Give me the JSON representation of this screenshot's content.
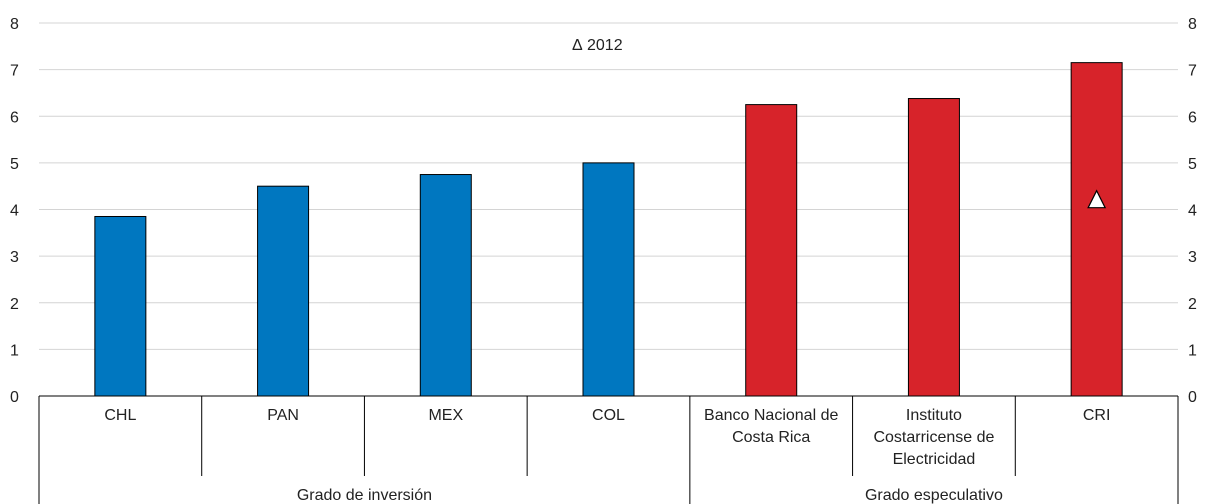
{
  "chart_data": {
    "type": "bar",
    "categories": [
      "CHL",
      "PAN",
      "MEX",
      "COL",
      "Banco Nacional de Costa Rica",
      "Instituto Costarricense de Electricidad",
      "CRI"
    ],
    "category_lines": [
      [
        "CHL"
      ],
      [
        "PAN"
      ],
      [
        "MEX"
      ],
      [
        "COL"
      ],
      [
        "Banco Nacional de",
        "Costa Rica"
      ],
      [
        "Instituto",
        "Costarricense de",
        "Electricidad"
      ],
      [
        "CRI"
      ]
    ],
    "values": [
      3.85,
      4.5,
      4.75,
      5.0,
      6.25,
      6.38,
      7.15
    ],
    "groups": [
      {
        "label": "Grado de inversión",
        "start": 0,
        "end": 3,
        "color": "#0077c0"
      },
      {
        "label": "Grado especulativo",
        "start": 4,
        "end": 6,
        "color": "#d7232a"
      }
    ],
    "markers": [
      {
        "category": "CRI",
        "value": 4.2,
        "shape": "triangle",
        "label": "2012"
      }
    ],
    "legend": {
      "symbol": "Δ",
      "label": "2012",
      "placement": "top-center"
    },
    "ylim": [
      0,
      8
    ],
    "yticks": [
      0,
      1,
      2,
      3,
      4,
      5,
      6,
      7,
      8
    ],
    "y_axis_sides": [
      "left",
      "right"
    ],
    "grid": true,
    "title": "",
    "xlabel": "",
    "ylabel": ""
  }
}
